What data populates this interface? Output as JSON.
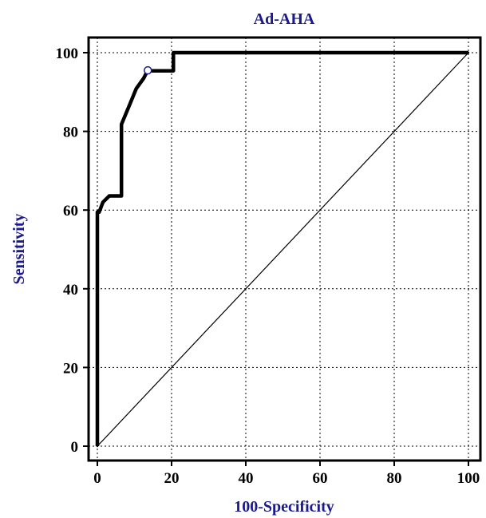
{
  "chart_data": {
    "type": "line",
    "title": "Ad-AHA",
    "xlabel": "100-Specificity",
    "ylabel": "Sensitivity",
    "xlim": [
      0,
      100
    ],
    "ylim": [
      0,
      100
    ],
    "xticks": [
      "0",
      "20",
      "40",
      "60",
      "80",
      "100"
    ],
    "yticks": [
      "0",
      "20",
      "40",
      "60",
      "80",
      "100"
    ],
    "grid": true,
    "colors": {
      "title": "#1a1a8c",
      "axis_label": "#1a1a8c",
      "curve": "#000000",
      "marker": "#1a1a8c"
    },
    "series": [
      {
        "role": "roc-curve",
        "x": [
          0,
          0,
          0.5,
          1.5,
          3.2,
          6.5,
          6.5,
          8.5,
          10.5,
          12.5,
          13.5,
          15.2,
          20.5,
          20.5,
          100
        ],
        "y": [
          0,
          59.5,
          59.5,
          62,
          63.6,
          63.6,
          81.8,
          86.3,
          90.9,
          93.5,
          95.4,
          95.4,
          95.4,
          100,
          100
        ]
      },
      {
        "role": "reference-line",
        "x": [
          0,
          100
        ],
        "y": [
          0,
          100
        ]
      }
    ],
    "markers": [
      {
        "x": 13.6,
        "y": 95.5
      }
    ]
  }
}
